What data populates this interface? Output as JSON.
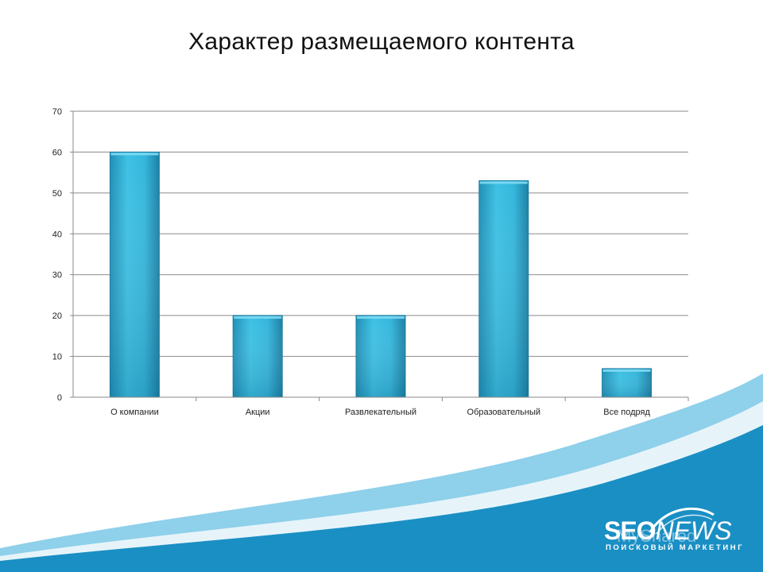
{
  "slide": {
    "title": "Характер размещаемого контента"
  },
  "chart_data": {
    "type": "bar",
    "title": "",
    "xlabel": "",
    "ylabel": "",
    "categories": [
      "О компании",
      "Акции",
      "Развлекательный",
      "Образовательный",
      "Все подряд"
    ],
    "values": [
      60,
      20,
      20,
      53,
      7
    ],
    "ylim": [
      0,
      70
    ],
    "yticks": [
      0,
      10,
      20,
      30,
      40,
      50,
      60,
      70
    ],
    "grid": true,
    "legend": "none",
    "bar_color": "#2fb4d9",
    "bar_color_dark": "#1f8fb5"
  },
  "branding": {
    "logo_main": "SEO",
    "logo_news": "NEWS",
    "logo_tagline": "ПОИСКОВЫЙ МАРКЕТИНГ",
    "watermark": "MyShared",
    "wave_dark": "#1a8fc4",
    "wave_light": "#8fd0ea"
  }
}
